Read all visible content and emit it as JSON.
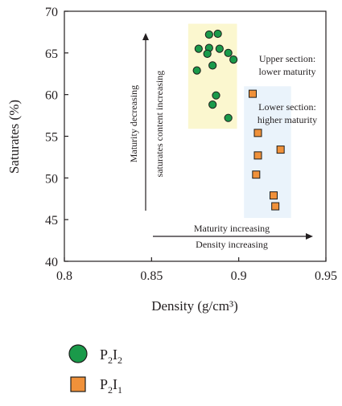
{
  "chart_data": {
    "type": "scatter",
    "xlabel": "Density (g/cm³)",
    "ylabel": "Saturates (%)",
    "xlim": [
      0.8,
      0.95
    ],
    "ylim": [
      40,
      70
    ],
    "x_ticks": [
      "0.8",
      "0.85",
      "0.9",
      "0.95"
    ],
    "y_ticks": [
      "40",
      "45",
      "50",
      "55",
      "60",
      "65",
      "70"
    ],
    "grid": false,
    "legend_position": "bottom-left",
    "series": [
      {
        "name": "P2I2",
        "marker": "circle",
        "color": "#1a9a4a",
        "points": [
          [
            0.883,
            67.2
          ],
          [
            0.888,
            67.3
          ],
          [
            0.877,
            65.5
          ],
          [
            0.883,
            65.6
          ],
          [
            0.889,
            65.5
          ],
          [
            0.894,
            65.0
          ],
          [
            0.882,
            64.9
          ],
          [
            0.897,
            64.2
          ],
          [
            0.885,
            63.5
          ],
          [
            0.876,
            62.9
          ],
          [
            0.887,
            59.9
          ],
          [
            0.885,
            58.8
          ],
          [
            0.894,
            57.2
          ]
        ]
      },
      {
        "name": "P2I1",
        "marker": "square",
        "color": "#f0913a",
        "points": [
          [
            0.908,
            60.1
          ],
          [
            0.911,
            55.4
          ],
          [
            0.924,
            53.4
          ],
          [
            0.911,
            52.7
          ],
          [
            0.91,
            50.4
          ],
          [
            0.92,
            47.9
          ],
          [
            0.921,
            46.6
          ]
        ]
      }
    ],
    "highlight_regions": [
      {
        "name": "upper-region",
        "x": [
          0.871,
          0.899
        ],
        "y": [
          55.9,
          68.5
        ],
        "color": "#fbf7cf"
      },
      {
        "name": "lower-region",
        "x": [
          0.903,
          0.93
        ],
        "y": [
          45.2,
          61.0
        ],
        "color": "#eaf3fb"
      }
    ],
    "annotations": {
      "upper_section": [
        "Upper section:",
        "lower maturity"
      ],
      "lower_section": [
        "Lower section:",
        "higher maturity"
      ],
      "vertical_arrow": [
        "Maturity decreasing",
        "saturates content increasing"
      ],
      "horizontal_arrow": [
        "Maturity increasing",
        "Density increasing"
      ]
    },
    "legend_labels": {
      "circle": {
        "base": "P",
        "sub1": "2",
        "mid": "I",
        "sub2": "2"
      },
      "square": {
        "base": "P",
        "sub1": "2",
        "mid": "I",
        "sub2": "1"
      }
    }
  }
}
